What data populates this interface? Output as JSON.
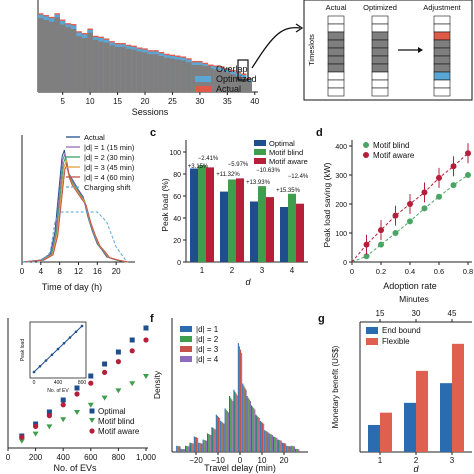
{
  "panel_letters": {
    "c": "c",
    "d": "d",
    "f": "f",
    "g": "g"
  },
  "colors": {
    "overlap": "#7f7f7f",
    "optimized": "#5aa7d6",
    "actual": "#e05a4a",
    "optimal": "#1f4e8c",
    "motif_blind": "#3f9e4d",
    "motif_aware": "#b51f3a",
    "end_bound": "#2b6cb0",
    "flexible": "#e0604f",
    "green_pt": "#4aa564",
    "red_pt": "#b51f3a"
  },
  "chart_data": [
    {
      "id": "a",
      "type": "bar",
      "xlabel": "Sessions",
      "xticks": [
        "5",
        "10",
        "15",
        "20",
        "25",
        "30",
        "35",
        "40"
      ],
      "legend": [
        "Overlap",
        "Optimized",
        "Actual"
      ],
      "note": "stacked session timeslots; values relative (0-1)",
      "overlap": [
        0.82,
        0.8,
        0.78,
        0.83,
        0.75,
        0.72,
        0.7,
        0.62,
        0.6,
        0.66,
        0.58,
        0.56,
        0.55,
        0.52,
        0.5,
        0.5,
        0.48,
        0.47,
        0.45,
        0.44,
        0.42,
        0.42,
        0.4,
        0.38,
        0.37,
        0.36,
        0.35,
        0.33,
        0.3,
        0.3,
        0.28,
        0.26,
        0.25,
        0.24,
        0.22,
        0.2,
        0.18,
        0.16,
        0.12
      ],
      "optimized": [
        0.86,
        0.84,
        0.82,
        0.86,
        0.79,
        0.75,
        0.74,
        0.66,
        0.64,
        0.69,
        0.61,
        0.6,
        0.58,
        0.55,
        0.53,
        0.53,
        0.51,
        0.5,
        0.48,
        0.47,
        0.45,
        0.45,
        0.43,
        0.41,
        0.4,
        0.39,
        0.38,
        0.36,
        0.33,
        0.33,
        0.31,
        0.29,
        0.28,
        0.27,
        0.25,
        0.23,
        0.21,
        0.19,
        0.14
      ]
    },
    {
      "id": "a-inset",
      "type": "diagram",
      "labels": {
        "actual": "Actual",
        "optimized": "Optimized",
        "adjustment": "Adjustment",
        "timeslots": "Timeslots"
      }
    },
    {
      "id": "b",
      "type": "line",
      "xlabel": "Time of day (h)",
      "xticks": [
        "0",
        "4",
        "8",
        "12",
        "16",
        "20"
      ],
      "xlim": [
        0,
        24
      ],
      "legend": [
        "Actual",
        "|d| = 1 (15 min)",
        "|d| = 2 (30 min)",
        "|d| = 3 (45 min)",
        "|d| = 4 (60 min)",
        "Charging shift"
      ],
      "series_colors": [
        "#1f4e8c",
        "#9b6bb5",
        "#3aa06b",
        "#e3a13b",
        "#c7524a",
        "#5aa7d6"
      ]
    },
    {
      "id": "c",
      "type": "bar",
      "ylabel": "Peak load (%)",
      "xlabel": "d",
      "categories": [
        "1",
        "2",
        "3",
        "4"
      ],
      "legend": [
        "Optimal",
        "Motif blind",
        "Motif aware"
      ],
      "ylim": [
        0,
        100
      ],
      "yticks": [
        "0",
        "20",
        "40",
        "60",
        "80",
        "100"
      ],
      "series": [
        {
          "name": "Optimal",
          "values": [
            85,
            64,
            55,
            50
          ]
        },
        {
          "name": "Motif blind",
          "values": [
            88,
            75,
            69,
            62
          ]
        },
        {
          "name": "Motif aware",
          "values": [
            86,
            76,
            59,
            53
          ]
        }
      ],
      "annotations": [
        "+3.15%",
        "−2.41%",
        "+11.32%",
        "−5.97%",
        "+13.93%",
        "−10.63%",
        "+15.35%",
        "−12.4%"
      ]
    },
    {
      "id": "d",
      "type": "scatter",
      "ylabel": "Peak load saving (kW)",
      "xlabel": "Adoption rate",
      "xticks": [
        "0",
        "0.2",
        "0.4",
        "0.6",
        "0.8"
      ],
      "yticks": [
        "0",
        "100",
        "200",
        "300",
        "400"
      ],
      "ylim": [
        0,
        400
      ],
      "xlim": [
        0,
        0.8
      ],
      "legend": [
        "Motif blind",
        "Motif aware"
      ],
      "series": [
        {
          "name": "Motif blind",
          "x": [
            0.1,
            0.2,
            0.3,
            0.4,
            0.5,
            0.6,
            0.7,
            0.8
          ],
          "y": [
            20,
            60,
            100,
            140,
            185,
            225,
            265,
            300
          ]
        },
        {
          "name": "Motif aware",
          "x": [
            0.1,
            0.2,
            0.3,
            0.4,
            0.5,
            0.6,
            0.7,
            0.8
          ],
          "y": [
            60,
            110,
            160,
            200,
            240,
            290,
            330,
            375
          ]
        }
      ]
    },
    {
      "id": "e",
      "type": "scatter",
      "xlabel": "No. of EVs",
      "xticks": [
        "0",
        "200",
        "400",
        "600",
        "800",
        "1,000"
      ],
      "xlim": [
        0,
        1000
      ],
      "legend": [
        "Optimal",
        "Motif blind",
        "Motif aware"
      ],
      "inset": {
        "xlabel": "No. of EV",
        "ylabel": "Peak load",
        "xticks": [
          "0",
          "400",
          "800"
        ]
      },
      "series": [
        {
          "name": "Optimal",
          "x": [
            100,
            200,
            300,
            400,
            500,
            600,
            700,
            800,
            900,
            1000
          ],
          "y": [
            10,
            20,
            30,
            40,
            50,
            60,
            70,
            80,
            90,
            100
          ]
        },
        {
          "name": "Motif blind",
          "x": [
            100,
            200,
            300,
            400,
            500,
            600,
            700,
            800,
            900,
            1000
          ],
          "y": [
            6,
            12,
            18,
            24,
            30,
            36,
            42,
            48,
            54,
            60
          ]
        },
        {
          "name": "Motif aware",
          "x": [
            100,
            200,
            300,
            400,
            500,
            600,
            700,
            800,
            900,
            1000
          ],
          "y": [
            9,
            18,
            27,
            36,
            45,
            54,
            63,
            72,
            81,
            90
          ]
        }
      ]
    },
    {
      "id": "f",
      "type": "bar",
      "ylabel": "Density",
      "xlabel": "Travel delay (min)",
      "xticks": [
        "−20",
        "−10",
        "0",
        "10",
        "20"
      ],
      "legend": [
        "|d| = 1",
        "|d| = 2",
        "|d| = 3",
        "|d| = 4"
      ],
      "x": [
        -28,
        -26,
        -24,
        -22,
        -20,
        -18,
        -16,
        -14,
        -12,
        -10,
        -8,
        -6,
        -4,
        -2,
        0,
        2,
        4,
        6,
        8,
        10,
        12,
        14,
        16,
        18,
        20,
        22,
        24,
        26
      ],
      "values": [
        0.02,
        0.01,
        0.02,
        0.03,
        0.05,
        0.03,
        0.04,
        0.06,
        0.08,
        0.12,
        0.1,
        0.14,
        0.18,
        0.2,
        0.35,
        0.22,
        0.18,
        0.15,
        0.12,
        0.1,
        0.07,
        0.06,
        0.05,
        0.04,
        0.03,
        0.02,
        0.02,
        0.01
      ]
    },
    {
      "id": "g",
      "type": "bar",
      "ylabel": "Monetary benefit (US$)",
      "xlabel": "d",
      "top_axis_label": "Minutes",
      "top_ticks": [
        "15",
        "30",
        "45"
      ],
      "categories": [
        "1",
        "2",
        "3"
      ],
      "legend": [
        "End bound",
        "Flexible"
      ],
      "series": [
        {
          "name": "End bound",
          "values": [
            550,
            1000,
            1400
          ]
        },
        {
          "name": "Flexible",
          "values": [
            800,
            1650,
            2200
          ]
        }
      ]
    }
  ]
}
